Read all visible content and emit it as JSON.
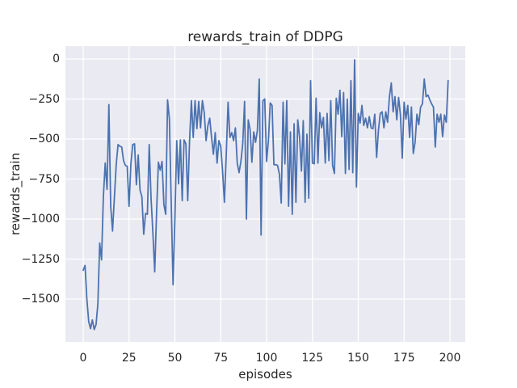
{
  "figure": {
    "title": "rewards_train of DDPG",
    "x_axis_label": "episodes",
    "y_axis_label": "rewards_train",
    "x_tick_labels": [
      "0",
      "25",
      "50",
      "75",
      "100",
      "125",
      "150",
      "175",
      "200"
    ],
    "y_tick_labels": [
      "0",
      "−250",
      "−500",
      "−750",
      "−1000",
      "−1250",
      "−1500"
    ]
  },
  "chart_data": {
    "type": "line",
    "title": "rewards_train of DDPG",
    "xlabel": "episodes",
    "ylabel": "rewards_train",
    "x_note": "x = episode index 0..199, one reward value per training episode",
    "x_ticks": [
      0,
      25,
      50,
      75,
      100,
      125,
      150,
      175,
      200
    ],
    "y_ticks": [
      0,
      -250,
      -500,
      -750,
      -1000,
      -1250,
      -1500
    ],
    "xlim": [
      -10,
      210
    ],
    "ylim": [
      -1780,
      85
    ],
    "grid": true,
    "legend_position": "none",
    "style": "seaborn-darkgrid",
    "plot_bg_color": "#EAEAF2",
    "grid_color": "#FFFFFF",
    "text_color": "#262626",
    "line_color": "#4C72B0",
    "series": [
      {
        "name": "rewards_train",
        "values": [
          -1320,
          -1290,
          -1500,
          -1640,
          -1685,
          -1630,
          -1690,
          -1660,
          -1530,
          -1150,
          -1255,
          -860,
          -650,
          -815,
          -285,
          -920,
          -1075,
          -865,
          -660,
          -535,
          -545,
          -550,
          -635,
          -665,
          -670,
          -920,
          -655,
          -535,
          -530,
          -785,
          -600,
          -820,
          -860,
          -1095,
          -965,
          -970,
          -535,
          -870,
          -1085,
          -1330,
          -965,
          -645,
          -695,
          -640,
          -910,
          -970,
          -255,
          -375,
          -900,
          -1410,
          -1000,
          -510,
          -780,
          -505,
          -885,
          -505,
          -530,
          -885,
          -510,
          -260,
          -490,
          -260,
          -435,
          -265,
          -430,
          -260,
          -335,
          -510,
          -415,
          -370,
          -490,
          -595,
          -460,
          -650,
          -510,
          -545,
          -700,
          -895,
          -600,
          -270,
          -490,
          -460,
          -510,
          -430,
          -650,
          -710,
          -640,
          -530,
          -265,
          -1000,
          -380,
          -440,
          -645,
          -455,
          -520,
          -445,
          -125,
          -1100,
          -260,
          -250,
          -640,
          -510,
          -275,
          -290,
          -660,
          -660,
          -665,
          -720,
          -900,
          -270,
          -655,
          -260,
          -920,
          -455,
          -970,
          -405,
          -895,
          -380,
          -490,
          -700,
          -385,
          -895,
          -470,
          -870,
          -135,
          -650,
          -655,
          -245,
          -650,
          -335,
          -430,
          -365,
          -650,
          -340,
          -635,
          -260,
          -665,
          -715,
          -245,
          -345,
          -195,
          -485,
          -210,
          -715,
          -250,
          -690,
          -135,
          -710,
          -5,
          -800,
          -340,
          -400,
          -290,
          -415,
          -370,
          -430,
          -360,
          -430,
          -435,
          -345,
          -615,
          -445,
          -340,
          -330,
          -430,
          -330,
          -395,
          -235,
          -150,
          -330,
          -235,
          -380,
          -240,
          -350,
          -620,
          -270,
          -375,
          -290,
          -490,
          -300,
          -590,
          -520,
          -345,
          -410,
          -300,
          -280,
          -125,
          -235,
          -225,
          -255,
          -280,
          -300,
          -550,
          -345,
          -395,
          -345,
          -485,
          -350,
          -395,
          -135
        ]
      }
    ]
  }
}
